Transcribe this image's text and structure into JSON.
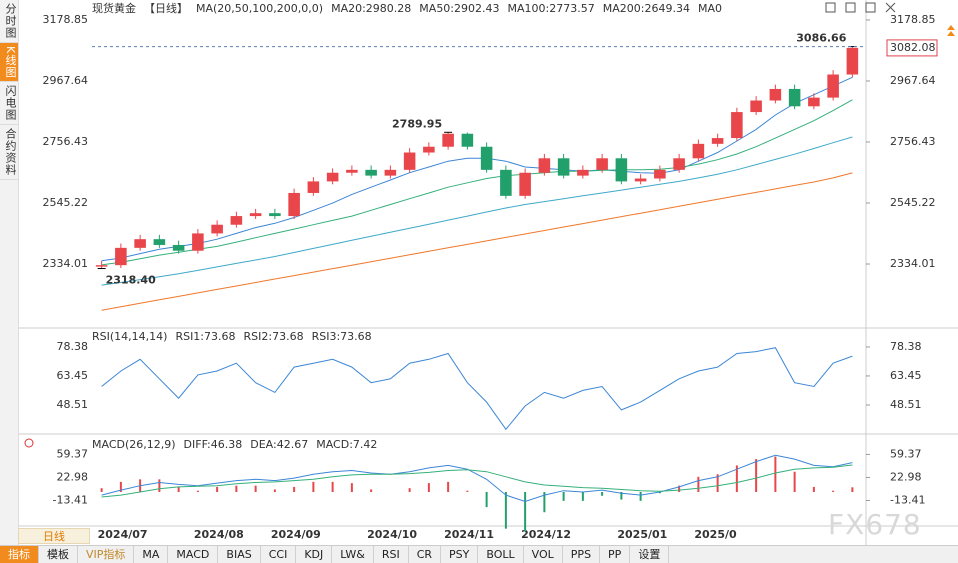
{
  "sidebar": [
    "分时图",
    "K线图",
    "闪电图",
    "合约资料"
  ],
  "chart_data": [
    {
      "type": "candlestick",
      "title": "现货黄金",
      "period": "【日线】",
      "indicator": "MA(20,50,100,200,0,0)",
      "categories": [
        "2024/07",
        null,
        null,
        null,
        null,
        "2024/08",
        null,
        null,
        null,
        "2024/09",
        null,
        null,
        null,
        null,
        "2024/10",
        null,
        null,
        null,
        "2024/11",
        null,
        null,
        null,
        "2024/12",
        null,
        null,
        null,
        null,
        "2025/01",
        null,
        null,
        null,
        "2025/0",
        null,
        null,
        null,
        null,
        null,
        null,
        null,
        null
      ],
      "open": [
        2325,
        2330,
        2390,
        2420,
        2400,
        2380,
        2440,
        2470,
        2500,
        2510,
        2500,
        2580,
        2620,
        2650,
        2660,
        2640,
        2660,
        2720,
        2740,
        2785,
        2740,
        2660,
        2570,
        2650,
        2700,
        2640,
        2660,
        2700,
        2620,
        2630,
        2660,
        2700,
        2750,
        2770,
        2860,
        2900,
        2940,
        2880,
        2910,
        2990
      ],
      "high": [
        2345,
        2405,
        2435,
        2435,
        2415,
        2455,
        2485,
        2515,
        2525,
        2525,
        2595,
        2635,
        2665,
        2675,
        2675,
        2675,
        2735,
        2755,
        2789.95,
        2789,
        2755,
        2675,
        2665,
        2715,
        2715,
        2675,
        2715,
        2715,
        2645,
        2675,
        2715,
        2765,
        2785,
        2875,
        2915,
        2955,
        2955,
        2925,
        3005,
        3086.66
      ],
      "low": [
        2318.4,
        2320,
        2380,
        2390,
        2370,
        2370,
        2430,
        2460,
        2490,
        2490,
        2490,
        2570,
        2610,
        2640,
        2630,
        2630,
        2650,
        2710,
        2730,
        2730,
        2650,
        2560,
        2560,
        2640,
        2630,
        2630,
        2650,
        2610,
        2610,
        2620,
        2650,
        2690,
        2740,
        2760,
        2850,
        2890,
        2870,
        2870,
        2900,
        2980
      ],
      "close": [
        2330,
        2390,
        2420,
        2400,
        2380,
        2440,
        2470,
        2500,
        2510,
        2500,
        2580,
        2620,
        2650,
        2660,
        2640,
        2660,
        2720,
        2740,
        2785,
        2740,
        2660,
        2570,
        2650,
        2700,
        2640,
        2660,
        2700,
        2620,
        2630,
        2660,
        2700,
        2750,
        2770,
        2860,
        2900,
        2940,
        2880,
        2910,
        2990,
        3082.08
      ],
      "up_color": "#e8464a",
      "down_color": "#22a06b",
      "series": [
        {
          "name": "MA20:2980.28",
          "color": "#3c86d6",
          "values": [
            2345,
            2355,
            2370,
            2385,
            2395,
            2405,
            2420,
            2440,
            2460,
            2475,
            2495,
            2520,
            2545,
            2575,
            2600,
            2625,
            2650,
            2670,
            2690,
            2700,
            2700,
            2690,
            2670,
            2665,
            2660,
            2655,
            2660,
            2655,
            2650,
            2648,
            2660,
            2690,
            2720,
            2760,
            2800,
            2850,
            2890,
            2920,
            2950,
            2980.28
          ]
        },
        {
          "name": "MA50:2902.43",
          "color": "#34b07a",
          "values": [
            2331,
            2340,
            2352,
            2365,
            2375,
            2385,
            2395,
            2410,
            2425,
            2440,
            2455,
            2470,
            2485,
            2500,
            2520,
            2540,
            2560,
            2580,
            2600,
            2615,
            2630,
            2640,
            2645,
            2650,
            2655,
            2655,
            2658,
            2660,
            2660,
            2662,
            2668,
            2680,
            2695,
            2715,
            2740,
            2770,
            2800,
            2830,
            2865,
            2902.43
          ]
        },
        {
          "name": "MA100:2773.57",
          "color": "#3fa9c9",
          "values": [
            2261,
            2270,
            2280,
            2290,
            2300,
            2312,
            2324,
            2336,
            2348,
            2360,
            2374,
            2388,
            2402,
            2416,
            2430,
            2444,
            2458,
            2472,
            2486,
            2500,
            2514,
            2528,
            2540,
            2550,
            2560,
            2570,
            2580,
            2590,
            2600,
            2610,
            2620,
            2632,
            2645,
            2660,
            2678,
            2696,
            2714,
            2734,
            2754,
            2773.57
          ]
        },
        {
          "name": "MA200:2649.34",
          "color": "#f0782a",
          "values": [
            2174,
            2186,
            2198,
            2210,
            2222,
            2234,
            2246,
            2258,
            2270,
            2282,
            2294,
            2306,
            2318,
            2330,
            2342,
            2354,
            2366,
            2378,
            2390,
            2402,
            2414,
            2426,
            2438,
            2450,
            2462,
            2474,
            2486,
            2498,
            2510,
            2522,
            2534,
            2546,
            2558,
            2570,
            2582,
            2594,
            2606,
            2618,
            2632,
            2649.34
          ]
        },
        {
          "name": "MA0",
          "color": "#ea8cc4"
        }
      ],
      "annotations": [
        {
          "value": 3086.66,
          "label": "3086.66"
        },
        {
          "value": 2789.95,
          "label": "2789.95"
        },
        {
          "value": 2318.4,
          "label": "2318.40"
        }
      ],
      "annotation_color": "#e0424e",
      "last_price": 3082.08,
      "ylim": [
        2116,
        3196
      ],
      "yticks": [
        3178.85,
        2967.64,
        2756.43,
        2545.22,
        2334.01
      ]
    },
    {
      "type": "line",
      "title": "RSI(14,14,14)",
      "series": [
        {
          "name": "RSI1:73.68",
          "color": "#3c86d6",
          "values": [
            58,
            66,
            72,
            62,
            52,
            64,
            66,
            70,
            60,
            55,
            68,
            70,
            72,
            68,
            60,
            62,
            70,
            72,
            75,
            60,
            50,
            36,
            48,
            55,
            52,
            56,
            58,
            46,
            50,
            56,
            62,
            66,
            68,
            75,
            76,
            78,
            60,
            58,
            70,
            73.68
          ]
        },
        {
          "name": "RSI2:73.68",
          "color": "#34b07a"
        },
        {
          "name": "RSI3:73.68",
          "color": "#3fa9c9"
        }
      ],
      "ylim": [
        34.6,
        87.1
      ],
      "yticks": [
        78.38,
        63.45,
        48.51
      ]
    },
    {
      "type": "macd",
      "title": "MACD(26,12,9)",
      "series": [
        {
          "name": "DIFF:46.38",
          "color": "#3c86d6",
          "values": [
            -5,
            3,
            10,
            15,
            12,
            10,
            14,
            18,
            20,
            18,
            22,
            28,
            32,
            34,
            30,
            28,
            32,
            38,
            42,
            36,
            20,
            -5,
            -15,
            -5,
            2,
            0,
            3,
            -2,
            -5,
            0,
            8,
            18,
            24,
            36,
            48,
            58,
            52,
            42,
            40,
            46.38
          ]
        },
        {
          "name": "DEA:42.67",
          "color": "#34b07a",
          "values": [
            -8,
            -5,
            0,
            5,
            8,
            9,
            10,
            13,
            15,
            16,
            18,
            20,
            24,
            27,
            28,
            28,
            29,
            31,
            34,
            35,
            32,
            24,
            16,
            11,
            9,
            7,
            6,
            4,
            2,
            1,
            3,
            6,
            10,
            15,
            22,
            30,
            36,
            38,
            39,
            42.67
          ]
        },
        {
          "name": "MACD:7.42",
          "color": "#3fa9c9",
          "values": [
            6,
            16,
            20,
            20,
            8,
            2,
            8,
            10,
            10,
            4,
            8,
            16,
            16,
            14,
            4,
            0,
            6,
            14,
            16,
            2,
            -24,
            -58,
            -62,
            -32,
            -14,
            -14,
            -6,
            -12,
            -14,
            -2,
            10,
            24,
            28,
            42,
            52,
            56,
            32,
            8,
            2,
            7.42
          ]
        }
      ],
      "up_color": "#e8464a",
      "down_color": "#22a06b",
      "ylim": [
        -52.2,
        88.5
      ],
      "yticks": [
        59.37,
        22.98,
        -13.41
      ]
    }
  ],
  "footer": {
    "period": "日线",
    "tabs": [
      "指标",
      "模板",
      "VIP指标",
      "MA",
      "MACD",
      "BIAS",
      "CCI",
      "KDJ",
      "LW&",
      "RSI",
      "CR",
      "PSY",
      "BOLL",
      "VOL",
      "PPS",
      "PP",
      "设置"
    ]
  },
  "watermark": "FX678"
}
